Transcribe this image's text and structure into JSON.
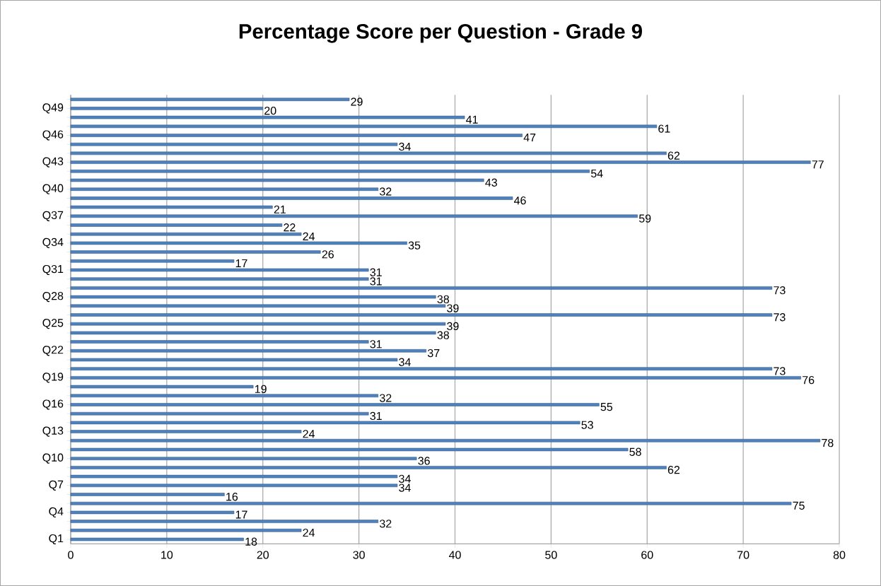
{
  "chart_data": {
    "type": "bar",
    "orientation": "horizontal",
    "title": "Percentage Score per Question - Grade 9",
    "categories": [
      null,
      "Q49",
      null,
      null,
      "Q46",
      null,
      null,
      "Q43",
      null,
      null,
      "Q40",
      null,
      null,
      "Q37",
      null,
      null,
      "Q34",
      null,
      null,
      "Q31",
      null,
      null,
      "Q28",
      null,
      null,
      "Q25",
      null,
      null,
      "Q22",
      null,
      null,
      "Q19",
      null,
      null,
      "Q16",
      null,
      null,
      "Q13",
      null,
      null,
      "Q10",
      null,
      null,
      "Q7",
      null,
      null,
      "Q4",
      null,
      null,
      "Q1"
    ],
    "values": [
      29,
      20,
      41,
      61,
      47,
      34,
      62,
      77,
      54,
      43,
      32,
      46,
      21,
      59,
      22,
      24,
      35,
      26,
      17,
      31,
      31,
      73,
      38,
      39,
      73,
      39,
      38,
      31,
      37,
      34,
      73,
      76,
      19,
      32,
      55,
      31,
      53,
      24,
      78,
      58,
      36,
      62,
      34,
      34,
      16,
      75,
      17,
      32,
      24,
      18
    ],
    "color": "#4f81bd",
    "xlim": [
      0,
      80
    ],
    "xticks": [
      0,
      10,
      20,
      30,
      40,
      50,
      60,
      70,
      80
    ],
    "grid": "x",
    "data_labels": true
  }
}
